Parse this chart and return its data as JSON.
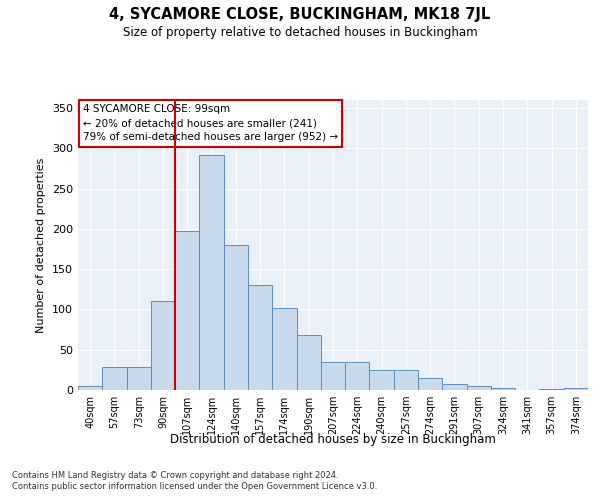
{
  "title": "4, SYCAMORE CLOSE, BUCKINGHAM, MK18 7JL",
  "subtitle": "Size of property relative to detached houses in Buckingham",
  "xlabel": "Distribution of detached houses by size in Buckingham",
  "ylabel": "Number of detached properties",
  "categories": [
    "40sqm",
    "57sqm",
    "73sqm",
    "90sqm",
    "107sqm",
    "124sqm",
    "140sqm",
    "157sqm",
    "174sqm",
    "190sqm",
    "207sqm",
    "224sqm",
    "240sqm",
    "257sqm",
    "274sqm",
    "291sqm",
    "307sqm",
    "324sqm",
    "341sqm",
    "357sqm",
    "374sqm"
  ],
  "values": [
    5,
    28,
    28,
    110,
    198,
    292,
    180,
    130,
    102,
    68,
    35,
    35,
    25,
    25,
    15,
    8,
    5,
    3,
    0,
    1,
    2
  ],
  "bar_color": "#c9d9ec",
  "bar_edge_color": "#5a8fc2",
  "vline_color": "#cc0000",
  "annotation_text": "4 SYCAMORE CLOSE: 99sqm\n← 20% of detached houses are smaller (241)\n79% of semi-detached houses are larger (952) →",
  "annotation_box_edge": "#cc0000",
  "ylim": [
    0,
    360
  ],
  "yticks": [
    0,
    50,
    100,
    150,
    200,
    250,
    300,
    350
  ],
  "bg_color": "#eaf0f8",
  "footer1": "Contains HM Land Registry data © Crown copyright and database right 2024.",
  "footer2": "Contains public sector information licensed under the Open Government Licence v3.0."
}
